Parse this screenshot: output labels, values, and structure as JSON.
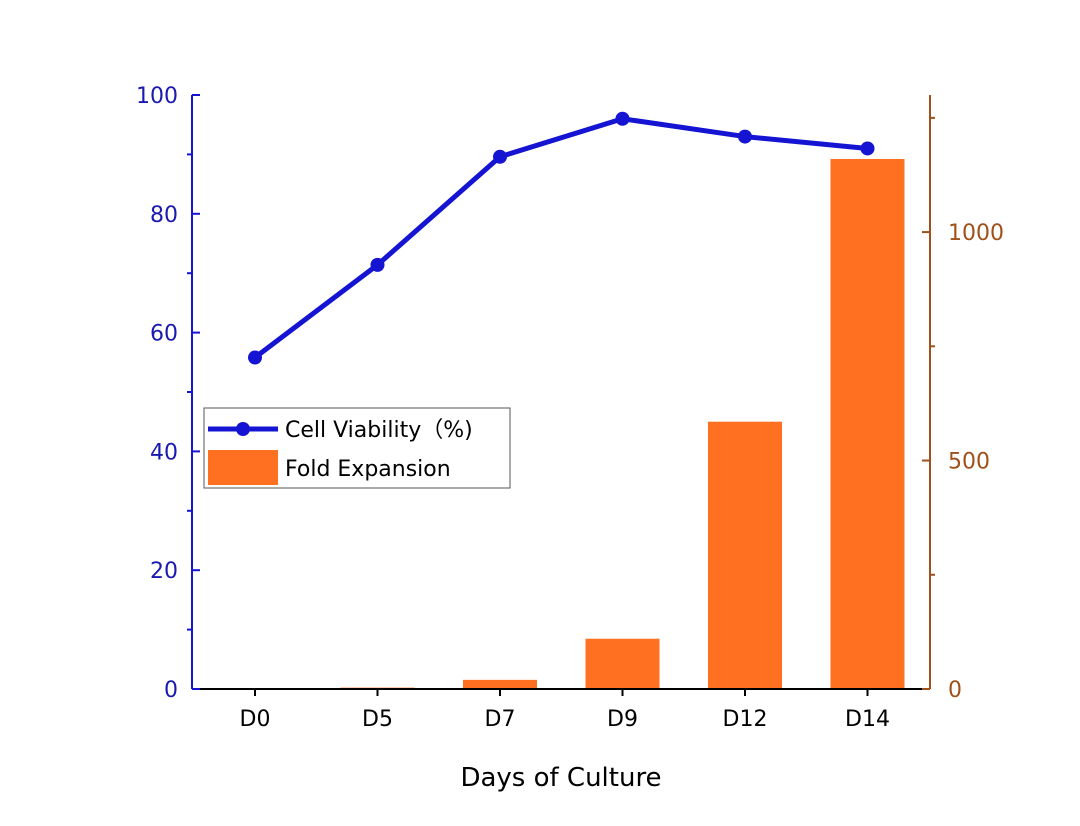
{
  "chart_data": {
    "type": "bar",
    "categories": [
      "D0",
      "D5",
      "D7",
      "D9",
      "D12",
      "D14"
    ],
    "xlabel": "Days of Culture",
    "series": [
      {
        "name": "Cell Viability（%)",
        "type": "line",
        "axis": "left",
        "values": [
          55.8,
          71.4,
          89.6,
          96.0,
          93.0,
          91.0
        ],
        "color": "#1414d2"
      },
      {
        "name": "Fold Expansion",
        "type": "bar",
        "axis": "right",
        "values": [
          0,
          3,
          20,
          110,
          585,
          1160
        ],
        "color": "#ff7020"
      }
    ],
    "y_left": {
      "ylim": [
        0,
        100
      ],
      "ticks": [
        0,
        20,
        40,
        60,
        80,
        100
      ],
      "color": "#1a1ab0"
    },
    "y_right": {
      "ylim": [
        0,
        1300
      ],
      "ticks": [
        0,
        500,
        1000
      ],
      "color": "#a0501a"
    },
    "legend_placement": "center-left",
    "grid": false
  }
}
